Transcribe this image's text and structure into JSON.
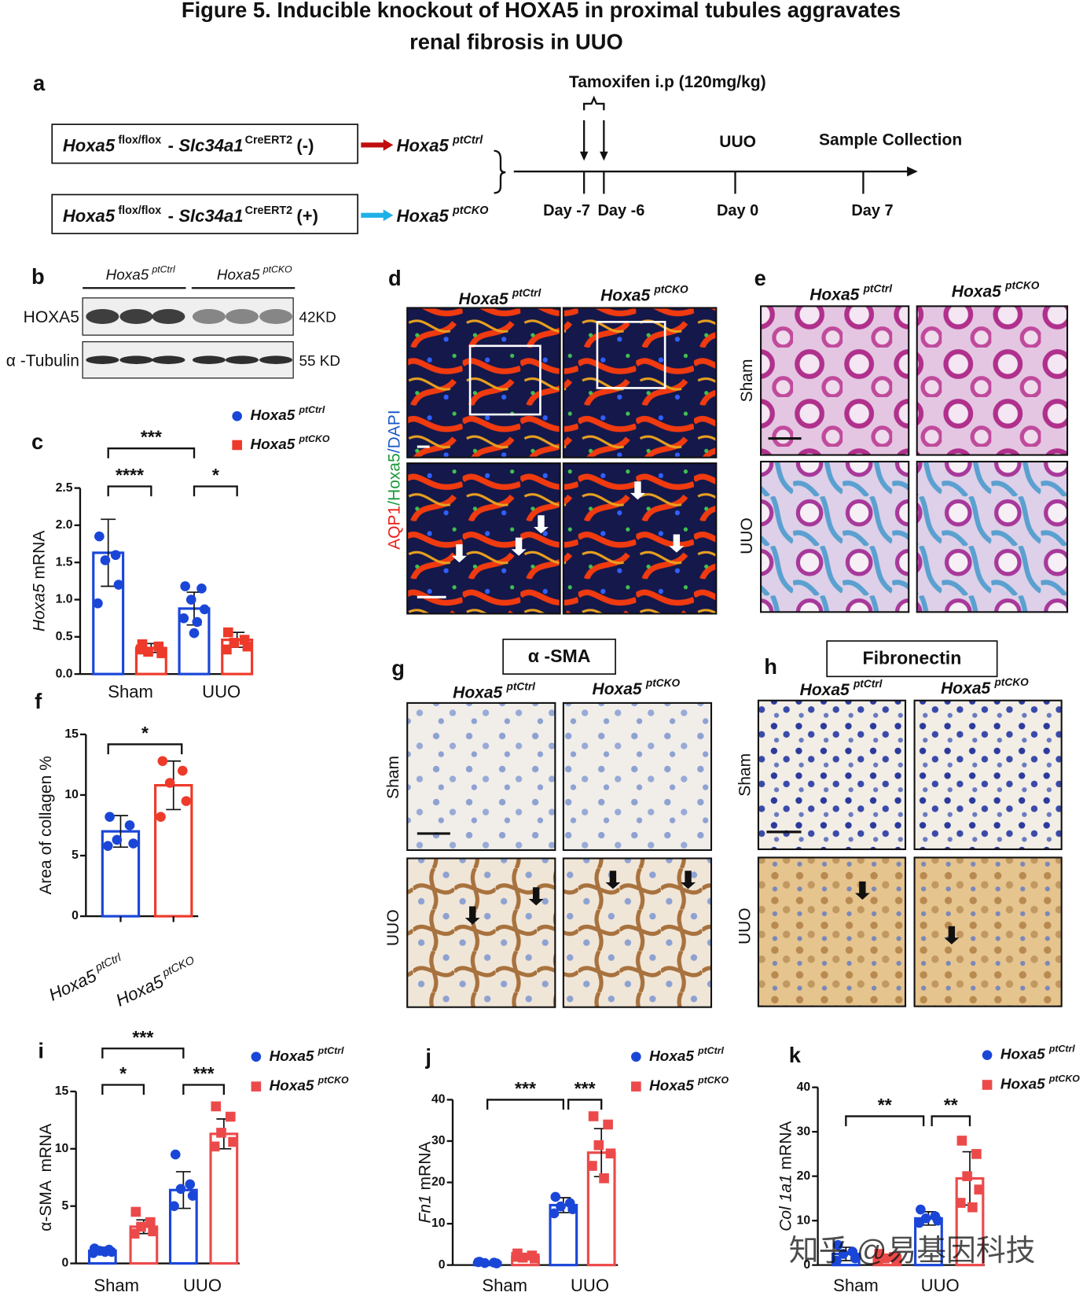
{
  "title": {
    "label": "Figure 5.",
    "lines": [
      "Inducible knockout of HOXA5 in proximal tubules aggravates",
      "renal fibrosis in UUO"
    ]
  },
  "panel_letters": [
    "a",
    "b",
    "c",
    "d",
    "e",
    "f",
    "g",
    "h",
    "i",
    "j",
    "k"
  ],
  "genotype": {
    "name": "Hoxa5",
    "ctrl": "ptCtrl",
    "cko": "ptCKO"
  },
  "scheme": {
    "lines": [
      {
        "gene1": "Hoxa5",
        "sup1": "flox/flox",
        "sep": "-",
        "gene2": "Slc34a1",
        "sup2": "CreERT2",
        "status": "(-)"
      },
      {
        "gene1": "Hoxa5",
        "sup1": "flox/flox",
        "sep": "-",
        "gene2": "Slc34a1",
        "sup2": "CreERT2",
        "status": "(+)"
      }
    ],
    "treatment": "Tamoxifen i.p (120mg/kg)",
    "events": [
      "UUO",
      "Sample Collection"
    ],
    "days": [
      "Day -7",
      "Day -6",
      "Day 0",
      "Day 7"
    ]
  },
  "blot": {
    "proteins": [
      "HOXA5",
      "α -Tubulin"
    ],
    "sizes": [
      "42KD",
      "55 KD"
    ]
  },
  "stain_parts": [
    "AQP1",
    "/Hoxa5",
    "/DAPI"
  ],
  "rows": [
    "Sham",
    "UUO"
  ],
  "stains": [
    "α -SMA",
    "Fibronectin"
  ],
  "watermark": "知乎 @易基因科技",
  "chart_data": [
    {
      "type": "bar",
      "ylabel": [
        {
          "text": "Hoxa5",
          "italic": true
        },
        {
          "text": " mRNA"
        }
      ],
      "categories": [
        "Sham",
        "UUO"
      ],
      "series": [
        {
          "name": "Hoxa5",
          "sup": "ptCtrl",
          "color": "#1a46d8",
          "marker": "circle",
          "values": [
            1.63,
            0.88
          ],
          "errors": [
            0.45,
            0.22
          ],
          "points": [
            [
              1.85,
              1.6,
              1.53,
              1.2,
              0.95
            ],
            [
              1.18,
              1.15,
              1.0,
              0.87,
              0.75,
              0.7,
              0.55
            ]
          ]
        },
        {
          "name": "Hoxa5",
          "sup": "ptCKO",
          "color": "#ee3a2a",
          "marker": "square",
          "values": [
            0.35,
            0.46
          ],
          "errors": [
            0.06,
            0.1
          ],
          "points": [
            [
              0.4,
              0.37,
              0.3,
              0.28,
              0.33
            ],
            [
              0.56,
              0.46,
              0.42,
              0.37,
              0.33
            ]
          ]
        }
      ],
      "ylim": [
        0,
        2.5
      ],
      "yticks": [
        {
          "value": 0,
          "label": "0.0"
        },
        0.5,
        {
          "value": 1,
          "label": "1.0"
        },
        1.5,
        {
          "value": 2,
          "label": "2.0"
        },
        2.5
      ],
      "annotations": [
        "***",
        "****",
        "*"
      ]
    },
    {
      "type": "bar",
      "ylabel": [
        {
          "text": "Area of collagen %"
        }
      ],
      "categories": [
        {
          "name": "Hoxa5",
          "sup": "ptCtrl"
        },
        {
          "name": "Hoxa5",
          "sup": "ptCKO"
        }
      ],
      "values": [
        7.0,
        10.8
      ],
      "errors": [
        1.3,
        2.0
      ],
      "points": [
        [
          8.2,
          7.5,
          6.3,
          6.0,
          5.8
        ],
        [
          12.8,
          12.0,
          11.0,
          9.5,
          8.2
        ]
      ],
      "colors": [
        "#1a46d8",
        "#ee3a2a"
      ],
      "markers": [
        "circle",
        "circle"
      ],
      "ylim": [
        0,
        15
      ],
      "yticks": [
        0,
        5,
        10,
        15
      ],
      "annotations": [
        "*"
      ]
    },
    {
      "type": "bar",
      "ylabel": [
        {
          "text": "α-SMA  mRNA"
        }
      ],
      "categories": [
        "Sham",
        "UUO"
      ],
      "series": [
        {
          "name": "Hoxa5",
          "sup": "ptCtrl",
          "color": "#1a46d8",
          "marker": "circle",
          "values": [
            1.1,
            6.4
          ],
          "errors": [
            0.3,
            1.6
          ],
          "points": [
            [
              1.3,
              1.2,
              1.1,
              1.0,
              0.9,
              1.0
            ],
            [
              9.5,
              6.9,
              6.5,
              5.9,
              5.0
            ]
          ]
        },
        {
          "name": "Hoxa5",
          "sup": "ptCKO",
          "color": "#ec4a4a",
          "marker": "square",
          "values": [
            3.2,
            11.3
          ],
          "errors": [
            0.6,
            1.3
          ],
          "points": [
            [
              4.5,
              3.6,
              3.2,
              2.8,
              2.6
            ],
            [
              13.7,
              12.8,
              11.4,
              10.6,
              10.2
            ]
          ]
        }
      ],
      "ylim": [
        0,
        15
      ],
      "yticks": [
        0,
        5,
        10,
        15
      ],
      "annotations": [
        "***",
        "*",
        "***"
      ]
    },
    {
      "type": "bar",
      "ylabel": [
        {
          "text": "Fn1",
          "italic": true
        },
        {
          "text": " mRNA"
        }
      ],
      "categories": [
        "Sham",
        "UUO"
      ],
      "series": [
        {
          "name": "Hoxa5",
          "sup": "ptCtrl",
          "color": "#1a46d8",
          "marker": "circle",
          "values": [
            0.6,
            14.5
          ],
          "errors": [
            0.3,
            1.8
          ],
          "points": [
            [
              0.8,
              0.6,
              0.5,
              0.4,
              0.7
            ],
            [
              16.5,
              15.0,
              14.2,
              13.5,
              12.5
            ]
          ]
        },
        {
          "name": "Hoxa5",
          "sup": "ptCKO",
          "color": "#ec4a4a",
          "marker": "square",
          "values": [
            2.0,
            27.2
          ],
          "errors": [
            0.6,
            5.8
          ],
          "points": [
            [
              2.8,
              2.3,
              1.8,
              1.6,
              2.0
            ],
            [
              36,
              34,
              29,
              27,
              24,
              21
            ]
          ]
        }
      ],
      "ylim": [
        0,
        40
      ],
      "yticks": [
        0,
        10,
        20,
        30,
        40
      ],
      "annotations": [
        "***",
        "***"
      ]
    },
    {
      "type": "bar",
      "ylabel": [
        {
          "text": "Col 1a1",
          "italic": true
        },
        {
          "text": " mRNA"
        }
      ],
      "categories": [
        "Sham",
        "UUO"
      ],
      "series": [
        {
          "name": "Hoxa5",
          "sup": "ptCtrl",
          "color": "#1a46d8",
          "marker": "circle",
          "values": [
            2.5,
            10.5
          ],
          "errors": [
            1.5,
            1.5
          ],
          "points": [
            [
              4.5,
              3,
              2.5,
              1.5,
              1.0
            ],
            [
              12.5,
              11,
              10.5,
              10,
              9.5
            ]
          ]
        },
        {
          "name": "Hoxa5",
          "sup": "ptCKO",
          "color": "#ec4a4a",
          "marker": "square",
          "values": [
            1.8,
            19.5
          ],
          "errors": [
            0.5,
            6
          ],
          "points": [
            [
              2.5,
              1.8,
              1.5,
              1.3,
              1.0
            ],
            [
              28,
              25,
              20,
              17,
              14,
              13
            ]
          ]
        }
      ],
      "ylim": [
        0,
        40
      ],
      "yticks": [
        0,
        10,
        20,
        30,
        40
      ],
      "annotations": [
        "**",
        "**"
      ]
    }
  ]
}
